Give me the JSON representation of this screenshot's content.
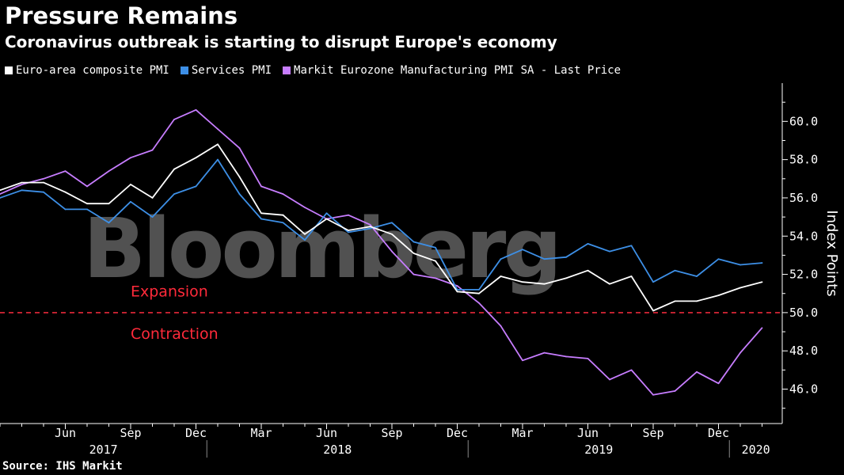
{
  "header": {
    "title": "Pressure Remains",
    "subtitle": "Coronavirus outbreak is starting to disrupt Europe's economy"
  },
  "footer": {
    "source": "Source: IHS Markit"
  },
  "watermark": "Bloomberg",
  "chart_data": {
    "type": "line",
    "title": "Pressure Remains",
    "subtitle": "Coronavirus outbreak is starting to disrupt Europe's economy",
    "ylabel": "Index Points",
    "xlabel": "",
    "ylim": [
      44.2,
      62.0
    ],
    "yticks": [
      46,
      48,
      50,
      52,
      54,
      56,
      58,
      60
    ],
    "ytick_labels": [
      "46.0",
      "48.0",
      "50.0",
      "52.0",
      "54.0",
      "56.0",
      "58.0",
      "60.0"
    ],
    "grid": false,
    "legend_position": "top-left",
    "x": [
      "2017-03",
      "2017-04",
      "2017-05",
      "2017-06",
      "2017-07",
      "2017-08",
      "2017-09",
      "2017-10",
      "2017-11",
      "2017-12",
      "2018-01",
      "2018-02",
      "2018-03",
      "2018-04",
      "2018-05",
      "2018-06",
      "2018-07",
      "2018-08",
      "2018-09",
      "2018-10",
      "2018-11",
      "2018-12",
      "2019-01",
      "2019-02",
      "2019-03",
      "2019-04",
      "2019-05",
      "2019-06",
      "2019-07",
      "2019-08",
      "2019-09",
      "2019-10",
      "2019-11",
      "2019-12",
      "2020-01",
      "2020-02"
    ],
    "x_ticks": [
      {
        "month": "2017-06",
        "label": "Jun"
      },
      {
        "month": "2017-09",
        "label": "Sep"
      },
      {
        "month": "2017-12",
        "label": "Dec"
      },
      {
        "month": "2018-03",
        "label": "Mar"
      },
      {
        "month": "2018-06",
        "label": "Jun"
      },
      {
        "month": "2018-09",
        "label": "Sep"
      },
      {
        "month": "2018-12",
        "label": "Dec"
      },
      {
        "month": "2019-03",
        "label": "Mar"
      },
      {
        "month": "2019-06",
        "label": "Jun"
      },
      {
        "month": "2019-09",
        "label": "Sep"
      },
      {
        "month": "2019-12",
        "label": "Dec"
      }
    ],
    "year_labels": [
      "2017",
      "2018",
      "2019",
      "2020"
    ],
    "series": [
      {
        "name": "Euro-area composite PMI",
        "color": "#ffffff",
        "values": [
          56.4,
          56.8,
          56.8,
          56.3,
          55.7,
          55.7,
          56.7,
          56.0,
          57.5,
          58.1,
          58.8,
          57.1,
          55.2,
          55.1,
          54.1,
          54.9,
          54.3,
          54.5,
          54.1,
          53.1,
          52.7,
          51.1,
          51.0,
          51.9,
          51.6,
          51.5,
          51.8,
          52.2,
          51.5,
          51.9,
          50.1,
          50.6,
          50.6,
          50.9,
          51.3,
          51.6
        ]
      },
      {
        "name": "Services PMI",
        "color": "#3d8fe6",
        "values": [
          56.0,
          56.4,
          56.3,
          55.4,
          55.4,
          54.7,
          55.8,
          55.0,
          56.2,
          56.6,
          58.0,
          56.2,
          54.9,
          54.7,
          53.8,
          55.2,
          54.2,
          54.4,
          54.7,
          53.7,
          53.4,
          51.2,
          51.2,
          52.8,
          53.3,
          52.8,
          52.9,
          53.6,
          53.2,
          53.5,
          51.6,
          52.2,
          51.9,
          52.8,
          52.5,
          52.6
        ]
      },
      {
        "name": "Markit Eurozone Manufacturing PMI SA - Last Price",
        "color": "#c77dff",
        "values": [
          56.2,
          56.7,
          57.0,
          57.4,
          56.6,
          57.4,
          58.1,
          58.5,
          60.1,
          60.6,
          59.6,
          58.6,
          56.6,
          56.2,
          55.5,
          54.9,
          55.1,
          54.6,
          53.2,
          52.0,
          51.8,
          51.4,
          50.5,
          49.3,
          47.5,
          47.9,
          47.7,
          47.6,
          46.5,
          47.0,
          45.7,
          45.9,
          46.9,
          46.3,
          47.9,
          49.2
        ]
      }
    ],
    "reference_line": {
      "value": 50.0,
      "style": "dashed",
      "color": "#e8283a"
    },
    "annotations": [
      {
        "text": "Expansion",
        "value": 51.0
      },
      {
        "text": "Contraction",
        "value": 48.8
      }
    ]
  }
}
